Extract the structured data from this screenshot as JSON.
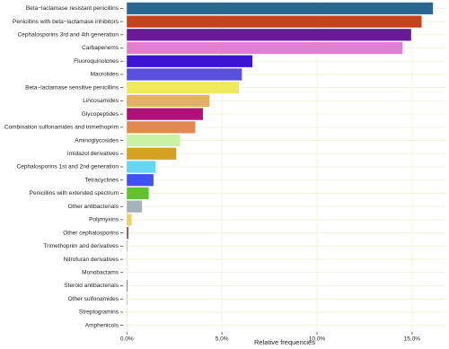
{
  "chart_data": {
    "type": "barh",
    "x_label": "Relative frequencies",
    "categories": [
      "Beta−lactamase resistant penicillins",
      "Penicillins with beta−lactamase inhibitors",
      "Cephalosporins 3rd and 4th generation",
      "Carbapenems",
      "Fluoroquinolones",
      "Macrolides",
      "Beta−lactamase sensitive penicillins",
      "Lincosamides",
      "Glycopeptides",
      "Combination sulfonamides and trimethoprim",
      "Aminoglycosides",
      "Imidazol derivatives",
      "Cephalosporins 1st and 2nd generation",
      "Tetracyclines",
      "Penicillins with extended spectrum",
      "Other antibacterials",
      "Polymyxins",
      "Other cephalosporins",
      "Trimethoprim and derivatives",
      "Nitrofuran derivatives",
      "Monobactams",
      "Steroid antibacterials",
      "Other sulfonamides",
      "Streptogramins",
      "Amphenicols"
    ],
    "values": [
      16.1,
      15.5,
      14.95,
      14.5,
      6.6,
      6.05,
      5.9,
      4.35,
      4.0,
      3.6,
      2.8,
      2.6,
      1.5,
      1.4,
      1.15,
      0.8,
      0.25,
      0.08,
      0.04,
      0.02,
      0.01,
      0.04,
      0.03,
      0.01,
      0.005
    ],
    "colors": [
      "#2b6891",
      "#c1441c",
      "#6a1a99",
      "#df7fd1",
      "#3c14d2",
      "#5b4fe0",
      "#efe95c",
      "#e2b062",
      "#b0107c",
      "#e08a52",
      "#c9f1a2",
      "#d5a123",
      "#62d9f0",
      "#4153ef",
      "#5fc230",
      "#a4b3ba",
      "#f0d062",
      "#904062",
      "#e0a0b2",
      "#c0e0b0",
      "#d0d0f0",
      "#4080a0",
      "#f0a0a0",
      "#b0b0d0",
      "#c0c0c0"
    ],
    "xlim": [
      -0.2,
      16.8
    ],
    "xticks": [
      {
        "value": 0,
        "label": "0.0%"
      },
      {
        "value": 5,
        "label": "5.0%"
      },
      {
        "value": 10,
        "label": "10.0%"
      },
      {
        "value": 15,
        "label": "15.0%"
      }
    ],
    "grid": true
  }
}
